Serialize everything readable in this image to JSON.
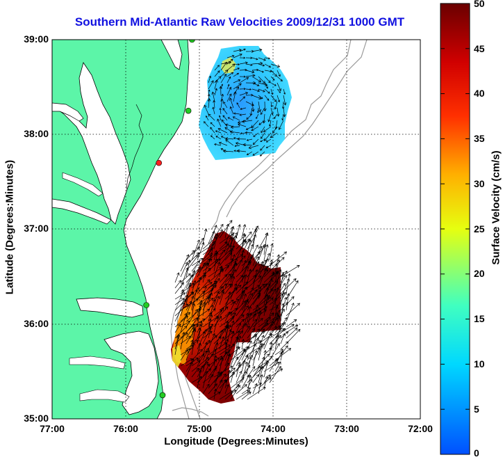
{
  "title": "Southern Mid-Atlantic Raw Velocities 2009/12/31 1000 GMT",
  "x_axis": {
    "label": "Longitude (Degrees:Minutes)",
    "ticks": [
      "77:00",
      "76:00",
      "75:00",
      "74:00",
      "73:00",
      "72:00"
    ]
  },
  "y_axis": {
    "label": "Latitude (Degrees:Minutes)",
    "ticks": [
      "39:00",
      "38:00",
      "37:00",
      "36:00",
      "35:00"
    ]
  },
  "colorbar": {
    "label": "Surface Velocity (cm/s)",
    "ticks": [
      "50",
      "45",
      "40",
      "35",
      "30",
      "25",
      "20",
      "15",
      "10",
      "5",
      "0"
    ],
    "range": [
      0,
      50
    ]
  },
  "map": {
    "lon_range": [
      -77,
      -72
    ],
    "lat_range": [
      35,
      39
    ],
    "land_color": "#5cf5a8",
    "grid": "dotted",
    "stations": [
      {
        "lon": -75.1,
        "lat": 39.0,
        "color": "#22cc22"
      },
      {
        "lon": -75.15,
        "lat": 38.25,
        "color": "#22cc22"
      },
      {
        "lon": -75.55,
        "lat": 37.7,
        "color": "#ff2020"
      },
      {
        "lon": -75.72,
        "lat": 36.2,
        "color": "#22cc22"
      },
      {
        "lon": -75.5,
        "lat": 35.25,
        "color": "#22cc22"
      }
    ],
    "northern_field_speed": "approx. 5-15 cm/s",
    "southern_field_speed": "approx. 30-50 cm/s"
  }
}
